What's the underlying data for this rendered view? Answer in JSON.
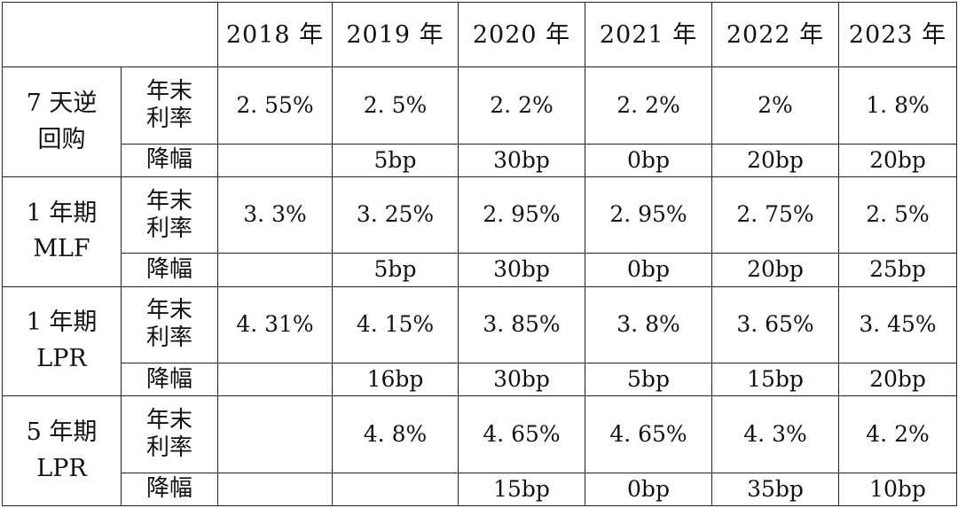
{
  "header": {
    "corner": "",
    "years": [
      "2018 年",
      "2019 年",
      "2020 年",
      "2021 年",
      "2022 年",
      "2023 年"
    ]
  },
  "labels": {
    "rate": "年末利率",
    "cut": "降幅"
  },
  "groups": [
    {
      "name_line1": "7 天逆",
      "name_line2": "回购",
      "rates": [
        "2. 55%",
        "2. 5%",
        "2. 2%",
        "2. 2%",
        "2%",
        "1. 8%"
      ],
      "cuts": [
        "",
        "5bp",
        "30bp",
        "0bp",
        "20bp",
        "20bp"
      ]
    },
    {
      "name_line1": "1 年期",
      "name_line2": "MLF",
      "rates": [
        "3. 3%",
        "3. 25%",
        "2. 95%",
        "2. 95%",
        "2. 75%",
        "2. 5%"
      ],
      "cuts": [
        "",
        "5bp",
        "30bp",
        "0bp",
        "20bp",
        "25bp"
      ]
    },
    {
      "name_line1": "1 年期",
      "name_line2": "LPR",
      "rates": [
        "4. 31%",
        "4. 15%",
        "3. 85%",
        "3. 8%",
        "3. 65%",
        "3. 45%"
      ],
      "cuts": [
        "",
        "16bp",
        "30bp",
        "5bp",
        "15bp",
        "20bp"
      ]
    },
    {
      "name_line1": "5 年期",
      "name_line2": "LPR",
      "rates": [
        "",
        "4. 8%",
        "4. 65%",
        "4. 65%",
        "4. 3%",
        "4. 2%"
      ],
      "cuts": [
        "",
        "",
        "15bp",
        "0bp",
        "35bp",
        "10bp"
      ]
    }
  ]
}
